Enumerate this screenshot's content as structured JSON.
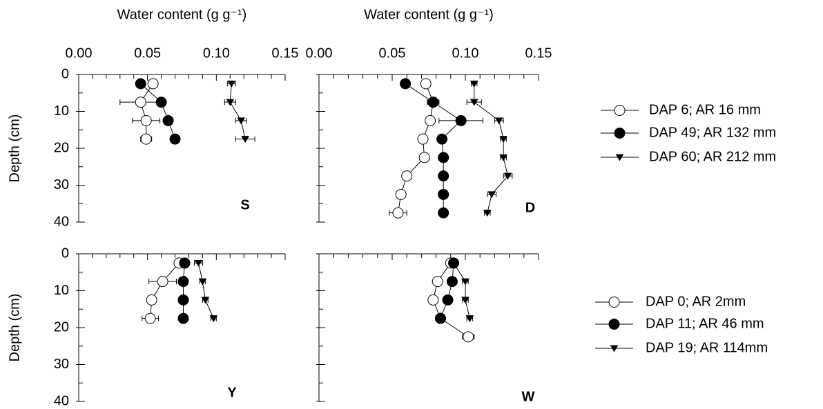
{
  "chart_data": [
    {
      "type": "scatter",
      "label": "S",
      "xlabel": "Water content (g g⁻¹)",
      "ylabel": "Depth (cm)",
      "xlim": [
        0,
        0.15
      ],
      "ylim": [
        0,
        40
      ],
      "y_inverted": true,
      "xticks": [
        {
          "value": 0,
          "label": "0.00"
        },
        {
          "value": 0.05,
          "label": "0.05"
        },
        {
          "value": 0.1,
          "label": "0.10"
        },
        {
          "value": 0.15,
          "label": "0.15"
        }
      ],
      "xminor": [
        0.01,
        0.02,
        0.03,
        0.04,
        0.06,
        0.07,
        0.08,
        0.09,
        0.11,
        0.12,
        0.13,
        0.14
      ],
      "yticks": [
        0,
        10,
        20,
        30,
        40
      ],
      "yminor": [
        5,
        15,
        25,
        35
      ],
      "ytick_labels": true,
      "legend": "right",
      "series": [
        {
          "name": "DAP 6; AR 16 mm",
          "color": "#000000",
          "marker": "open",
          "x": [
            0.054,
            0.045,
            0.049,
            0.049
          ],
          "y": [
            2.5,
            7.5,
            12.5,
            17.5
          ],
          "xerr": [
            0.002,
            0.015,
            0.01,
            0.004
          ]
        },
        {
          "name": "DAP 49; AR 132 mm",
          "color": "#000000",
          "marker": "filled",
          "x": [
            0.045,
            0.06,
            0.065,
            0.07
          ],
          "y": [
            2.5,
            7.5,
            12.5,
            17.5
          ],
          "xerr": [
            0.002,
            0.002,
            0.002,
            0.002
          ]
        },
        {
          "name": "DAP 60; AR 212 mm",
          "color": "#000000",
          "marker": "triangle",
          "x": [
            0.111,
            0.11,
            0.118,
            0.121
          ],
          "y": [
            2.5,
            7.5,
            12.5,
            17.5
          ],
          "xerr": [
            0.003,
            0.004,
            0.004,
            0.007
          ]
        }
      ]
    },
    {
      "type": "scatter",
      "label": "D",
      "xlabel": "Water content (g g⁻¹)",
      "xlim": [
        0,
        0.15
      ],
      "ylim": [
        0,
        40
      ],
      "y_inverted": true,
      "xticks": [
        {
          "value": 0,
          "label": "0.00"
        },
        {
          "value": 0.05,
          "label": "0.05"
        },
        {
          "value": 0.1,
          "label": "0.10"
        },
        {
          "value": 0.15,
          "label": "0.15"
        }
      ],
      "xminor": [
        0.01,
        0.02,
        0.03,
        0.04,
        0.06,
        0.07,
        0.08,
        0.09,
        0.11,
        0.12,
        0.13,
        0.14
      ],
      "yticks": [
        0,
        10,
        20,
        30,
        40
      ],
      "yminor": [
        5,
        15,
        25,
        35
      ],
      "ytick_labels": false,
      "series": [
        {
          "color": "#000000",
          "marker": "open",
          "x": [
            0.073,
            0.078,
            0.076,
            0.071,
            0.072,
            0.06,
            0.056,
            0.054
          ],
          "y": [
            2.5,
            7.5,
            12.5,
            17.5,
            22.5,
            27.5,
            32.5,
            37.5
          ],
          "xerr": [
            0.002,
            0.004,
            0.003,
            0.002,
            0.002,
            0.003,
            0.002,
            0.006
          ]
        },
        {
          "color": "#000000",
          "marker": "filled",
          "x": [
            0.059,
            0.078,
            0.097,
            0.084,
            0.085,
            0.085,
            0.085,
            0.085
          ],
          "y": [
            2.5,
            7.5,
            12.5,
            17.5,
            22.5,
            27.5,
            32.5,
            37.5
          ],
          "xerr": [
            0.002,
            0.003,
            0.015,
            0.002,
            0.002,
            0.002,
            0.002,
            0.002
          ]
        },
        {
          "color": "#000000",
          "marker": "triangle",
          "x": [
            0.106,
            0.106,
            0.123,
            0.126,
            0.126,
            0.129,
            0.118,
            0.115
          ],
          "y": [
            2.5,
            7.5,
            12.5,
            17.5,
            22.5,
            27.5,
            32.5,
            37.5
          ],
          "xerr": [
            0.002,
            0.005,
            0.003,
            0.002,
            0.002,
            0.003,
            0.003,
            0.002
          ]
        }
      ]
    },
    {
      "type": "scatter",
      "label": "Y",
      "ylabel": "Depth (cm)",
      "xlim": [
        0,
        0.15
      ],
      "ylim": [
        0,
        40
      ],
      "y_inverted": true,
      "xticks": [
        0,
        0.05,
        0.1,
        0.15
      ],
      "xminor": [
        0.01,
        0.02,
        0.03,
        0.04,
        0.06,
        0.07,
        0.08,
        0.09,
        0.11,
        0.12,
        0.13,
        0.14
      ],
      "yticks": [
        0,
        10,
        20,
        30,
        40
      ],
      "yminor": [
        5,
        15,
        25,
        35
      ],
      "ytick_labels": true,
      "legend": "right",
      "series": [
        {
          "name": "DAP 0; AR 2mm",
          "color": "#000000",
          "marker": "open",
          "x": [
            0.073,
            0.061,
            0.053,
            0.052
          ],
          "y": [
            2.5,
            7.5,
            12.5,
            17.5
          ],
          "xerr": [
            0.003,
            0.01,
            0.002,
            0.006
          ]
        },
        {
          "name": "DAP 11; AR 46 mm",
          "color": "#000000",
          "marker": "filled",
          "x": [
            0.077,
            0.076,
            0.076,
            0.076
          ],
          "y": [
            2.5,
            7.5,
            12.5,
            17.5
          ],
          "xerr": [
            0.002,
            0.002,
            0.002,
            0.002
          ]
        },
        {
          "name": "DAP 19; AR 114mm",
          "color": "#000000",
          "marker": "triangle",
          "x": [
            0.087,
            0.09,
            0.092,
            0.098
          ],
          "y": [
            2.5,
            7.5,
            12.5,
            17.5
          ],
          "xerr": [
            0.003,
            0.002,
            0.002,
            0.002
          ]
        }
      ]
    },
    {
      "type": "scatter",
      "label": "W",
      "xlim": [
        0,
        0.15
      ],
      "ylim": [
        0,
        40
      ],
      "y_inverted": true,
      "xticks": [
        0,
        0.05,
        0.1,
        0.15
      ],
      "xminor": [
        0.01,
        0.02,
        0.03,
        0.04,
        0.06,
        0.07,
        0.08,
        0.09,
        0.11,
        0.12,
        0.13,
        0.14
      ],
      "yticks": [
        0,
        10,
        20,
        30,
        40
      ],
      "yminor": [
        5,
        15,
        25,
        35
      ],
      "ytick_labels": false,
      "series": [
        {
          "color": "#000000",
          "marker": "open",
          "x": [
            0.09,
            0.081,
            0.078,
            0.083,
            0.102
          ],
          "y": [
            2.5,
            7.5,
            12.5,
            17.5,
            22.5
          ],
          "xerr": [
            0.003,
            0.002,
            0.002,
            0.003,
            0.004
          ]
        },
        {
          "color": "#000000",
          "marker": "filled",
          "x": [
            0.092,
            0.091,
            0.088,
            0.083
          ],
          "y": [
            2.5,
            7.5,
            12.5,
            17.5
          ],
          "xerr": [
            0.002,
            0.002,
            0.002,
            0.002
          ]
        },
        {
          "color": "#000000",
          "marker": "triangle",
          "x": [
            0.092,
            0.1,
            0.1,
            0.103
          ],
          "y": [
            2.5,
            7.5,
            12.5,
            17.5
          ],
          "xerr": [
            0.002,
            0.002,
            0.002,
            0.002
          ]
        }
      ]
    }
  ]
}
